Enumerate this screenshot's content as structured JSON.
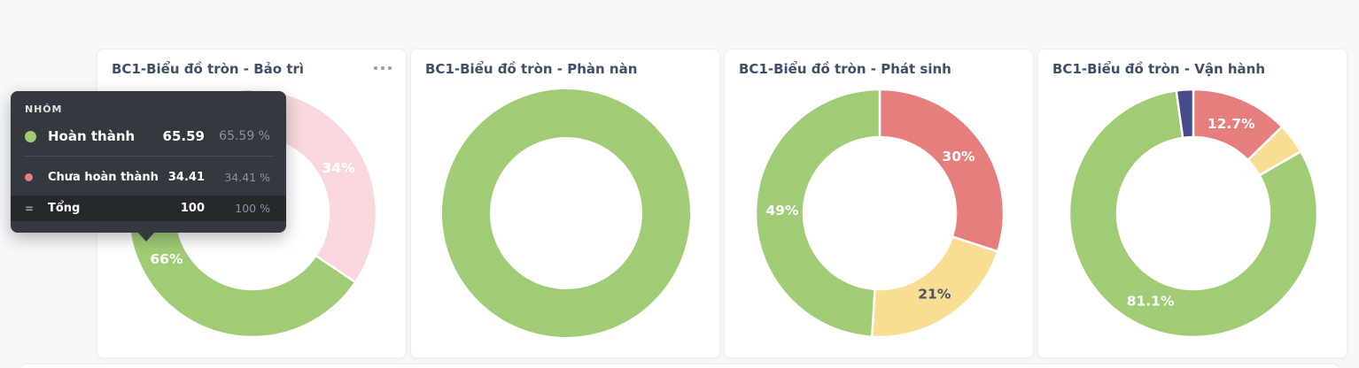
{
  "page": {
    "background_color": "#f7f8fa",
    "card_background": "#ffffff",
    "title_text_color": "#3f4e69"
  },
  "menu_button": {
    "icon": "more-options",
    "style": "three-dots"
  },
  "chart_data": [
    {
      "type": "pie",
      "variant": "donut",
      "title": "BC1-Biểu đồ tròn - Bảo trì",
      "has_menu_button": true,
      "start_at": "12-o-clock",
      "clockwise": true,
      "slices": [
        {
          "name": "Chưa hoàn thành",
          "value": 34.41,
          "display_label": "34%",
          "color": "#f8d8dc",
          "label_color": "#ffffff",
          "dimmed": true
        },
        {
          "name": "Hoàn thành",
          "value": 65.59,
          "display_label": "66%",
          "color": "#a0cc75",
          "label_color": "#ffffff",
          "hovered": true
        }
      ]
    },
    {
      "type": "pie",
      "variant": "donut",
      "title": "BC1-Biểu đồ tròn - Phàn nàn",
      "has_menu_button": false,
      "start_at": "12-o-clock",
      "clockwise": true,
      "slices": [
        {
          "value": 100,
          "display_label": "",
          "color": "#a0cc75"
        }
      ]
    },
    {
      "type": "pie",
      "variant": "donut",
      "title": "BC1-Biểu đồ tròn - Phát sinh",
      "has_menu_button": false,
      "start_at": "12-o-clock",
      "clockwise": true,
      "slices": [
        {
          "value": 30,
          "display_label": "30%",
          "color": "#e67e7e",
          "label_color": "#ffffff"
        },
        {
          "value": 21,
          "display_label": "21%",
          "color": "#f8dd92",
          "label_color": "#46526b"
        },
        {
          "value": 49,
          "display_label": "49%",
          "color": "#a0cc75",
          "label_color": "#ffffff"
        }
      ]
    },
    {
      "type": "pie",
      "variant": "donut",
      "title": "BC1-Biểu đồ tròn - Vận hành",
      "has_menu_button": false,
      "start_at": "12-o-clock",
      "clockwise": true,
      "slices": [
        {
          "value": 12.7,
          "display_label": "12.7%",
          "color": "#e67e7e",
          "label_color": "#ffffff"
        },
        {
          "value": 4.0,
          "display_label": "",
          "color": "#f8dd92",
          "estimated": true
        },
        {
          "value": 81.1,
          "display_label": "81.1%",
          "color": "#a0cc75",
          "label_color": "#ffffff"
        },
        {
          "value": 2.2,
          "display_label": "",
          "color": "#474b8b",
          "estimated": true
        }
      ]
    }
  ],
  "tooltip": {
    "header": "NHÓM",
    "background": "#34383f",
    "total_row_background": "#25282d",
    "rows": [
      {
        "label": "Hoàn thành",
        "value": "65.59",
        "percent": "65.59 %",
        "dot_color": "#a0cc75",
        "emphasized": true
      },
      {
        "label": "Chưa hoàn thành",
        "value": "34.41",
        "percent": "34.41 %",
        "dot_color": "#e57f86",
        "emphasized": false
      },
      {
        "label": "Tổng",
        "value": "100",
        "percent": "100 %",
        "marker": "=",
        "total": true
      }
    ]
  }
}
